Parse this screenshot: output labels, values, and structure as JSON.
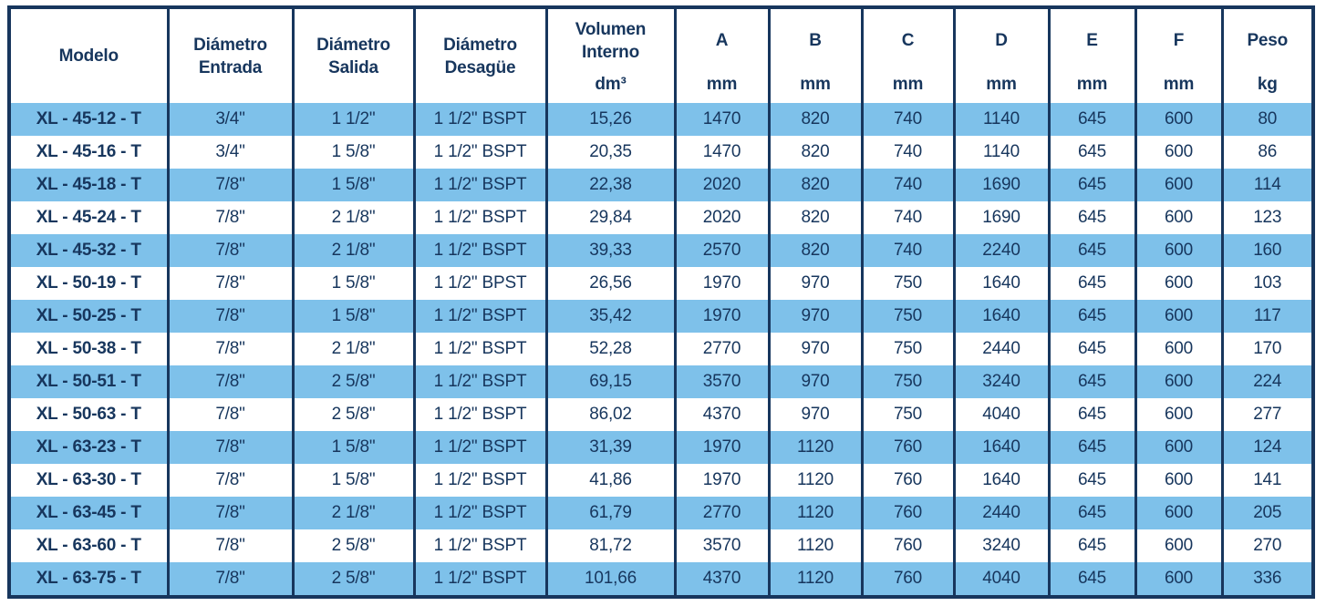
{
  "colors": {
    "row_stripe_blue": "#7EC1EA",
    "border_navy": "#17365D",
    "text_navy": "#17365D",
    "background": "#FFFFFF"
  },
  "table": {
    "columns": [
      {
        "label": "Modelo",
        "unit": ""
      },
      {
        "label": "Diámetro Entrada",
        "unit": ""
      },
      {
        "label": "Diámetro Salida",
        "unit": ""
      },
      {
        "label": "Diámetro Desagüe",
        "unit": ""
      },
      {
        "label": "Volumen Interno",
        "unit": "dm³"
      },
      {
        "label": "A",
        "unit": "mm"
      },
      {
        "label": "B",
        "unit": "mm"
      },
      {
        "label": "C",
        "unit": "mm"
      },
      {
        "label": "D",
        "unit": "mm"
      },
      {
        "label": "E",
        "unit": "mm"
      },
      {
        "label": "F",
        "unit": "mm"
      },
      {
        "label": "Peso",
        "unit": "kg"
      }
    ],
    "rows": [
      [
        "XL - 45-12 - T",
        "3/4\"",
        "1 1/2\"",
        "1 1/2\" BSPT",
        "15,26",
        "1470",
        "820",
        "740",
        "1140",
        "645",
        "600",
        "80"
      ],
      [
        "XL - 45-16 - T",
        "3/4\"",
        "1 5/8\"",
        "1 1/2\" BSPT",
        "20,35",
        "1470",
        "820",
        "740",
        "1140",
        "645",
        "600",
        "86"
      ],
      [
        "XL - 45-18 - T",
        "7/8\"",
        "1 5/8\"",
        "1 1/2\" BSPT",
        "22,38",
        "2020",
        "820",
        "740",
        "1690",
        "645",
        "600",
        "114"
      ],
      [
        "XL - 45-24 - T",
        "7/8\"",
        "2 1/8\"",
        "1 1/2\" BSPT",
        "29,84",
        "2020",
        "820",
        "740",
        "1690",
        "645",
        "600",
        "123"
      ],
      [
        "XL - 45-32 - T",
        "7/8\"",
        "2 1/8\"",
        "1 1/2\" BSPT",
        "39,33",
        "2570",
        "820",
        "740",
        "2240",
        "645",
        "600",
        "160"
      ],
      [
        "XL - 50-19 - T",
        "7/8\"",
        "1 5/8\"",
        "1 1/2\" BPST",
        "26,56",
        "1970",
        "970",
        "750",
        "1640",
        "645",
        "600",
        "103"
      ],
      [
        "XL - 50-25 - T",
        "7/8\"",
        "1 5/8\"",
        "1 1/2\" BSPT",
        "35,42",
        "1970",
        "970",
        "750",
        "1640",
        "645",
        "600",
        "117"
      ],
      [
        "XL - 50-38 - T",
        "7/8\"",
        "2 1/8\"",
        "1 1/2\" BSPT",
        "52,28",
        "2770",
        "970",
        "750",
        "2440",
        "645",
        "600",
        "170"
      ],
      [
        "XL - 50-51 - T",
        "7/8\"",
        "2 5/8\"",
        "1 1/2\" BSPT",
        "69,15",
        "3570",
        "970",
        "750",
        "3240",
        "645",
        "600",
        "224"
      ],
      [
        "XL - 50-63 - T",
        "7/8\"",
        "2 5/8\"",
        "1 1/2\" BSPT",
        "86,02",
        "4370",
        "970",
        "750",
        "4040",
        "645",
        "600",
        "277"
      ],
      [
        "XL - 63-23 - T",
        "7/8\"",
        "1 5/8\"",
        "1 1/2\" BSPT",
        "31,39",
        "1970",
        "1120",
        "760",
        "1640",
        "645",
        "600",
        "124"
      ],
      [
        "XL - 63-30 - T",
        "7/8\"",
        "1 5/8\"",
        "1 1/2\" BSPT",
        "41,86",
        "1970",
        "1120",
        "760",
        "1640",
        "645",
        "600",
        "141"
      ],
      [
        "XL - 63-45 - T",
        "7/8\"",
        "2 1/8\"",
        "1 1/2\" BSPT",
        "61,79",
        "2770",
        "1120",
        "760",
        "2440",
        "645",
        "600",
        "205"
      ],
      [
        "XL - 63-60 - T",
        "7/8\"",
        "2 5/8\"",
        "1 1/2\" BSPT",
        "81,72",
        "3570",
        "1120",
        "760",
        "3240",
        "645",
        "600",
        "270"
      ],
      [
        "XL - 63-75 - T",
        "7/8\"",
        "2 5/8\"",
        "1 1/2\" BSPT",
        "101,66",
        "4370",
        "1120",
        "760",
        "4040",
        "645",
        "600",
        "336"
      ]
    ]
  }
}
